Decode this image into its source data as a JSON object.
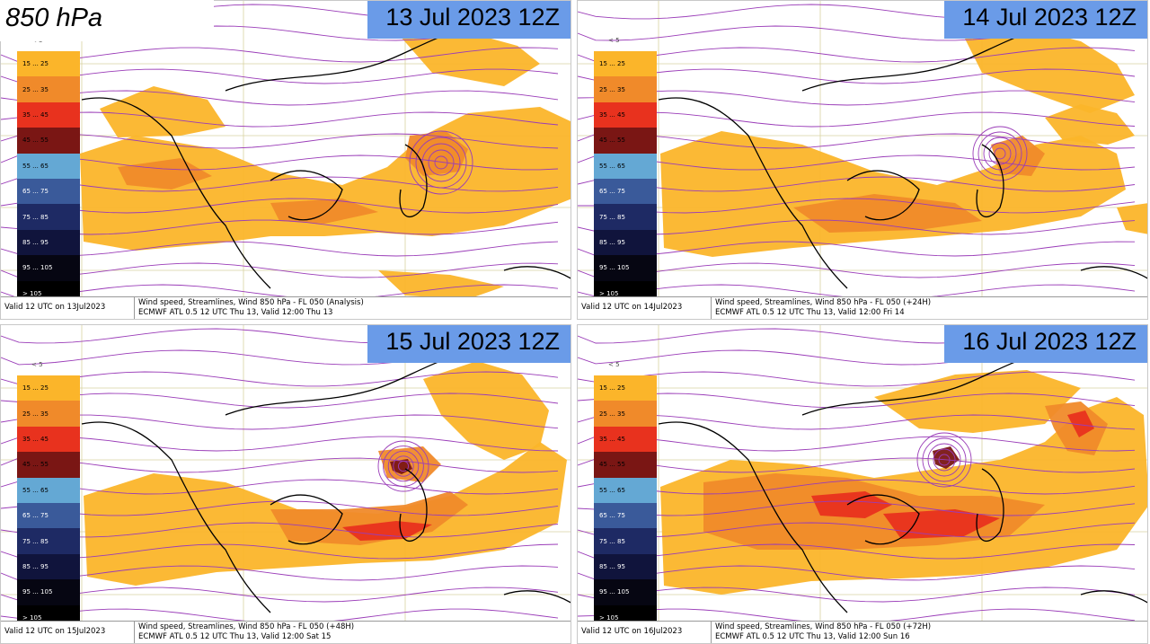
{
  "level_label": "850 hPa",
  "legend": {
    "below_min": "< 5",
    "bins": [
      {
        "label": "15 ... 25",
        "color": "#fbb52a"
      },
      {
        "label": "25 ... 35",
        "color": "#f08a2a"
      },
      {
        "label": "35 ... 45",
        "color": "#e8321e"
      },
      {
        "label": "45 ... 55",
        "color": "#7a1614"
      },
      {
        "label": "55 ... 65",
        "color": "#64a8d4"
      },
      {
        "label": "65 ... 75",
        "color": "#3a5a9a"
      },
      {
        "label": "75 ... 85",
        "color": "#1e2a64"
      },
      {
        "label": "85 ... 95",
        "color": "#10143c"
      },
      {
        "label": "95 ... 105",
        "color": "#060612"
      },
      {
        "label": "> 105",
        "color": "#000000"
      }
    ]
  },
  "panels": [
    {
      "date": "13 Jul 2023 12Z",
      "valid": "Valid 12 UTC on 13Jul2023",
      "line1": "Wind speed, Streamlines, Wind  850 hPa - FL 050 (Analysis)",
      "line2": "ECMWF ATL 0.5 12 UTC Thu 13, Valid 12:00 Thu 13"
    },
    {
      "date": "14 Jul 2023 12Z",
      "valid": "Valid 12 UTC on 14Jul2023",
      "line1": "Wind speed, Streamlines, Wind  850 hPa - FL 050 (+24H)",
      "line2": "ECMWF ATL 0.5 12 UTC Thu 13, Valid 12:00 Fri 14"
    },
    {
      "date": "15 Jul 2023 12Z",
      "valid": "Valid 12 UTC on 15Jul2023",
      "line1": "Wind speed, Streamlines, Wind  850 hPa - FL 050 (+48H)",
      "line2": "ECMWF ATL 0.5 12 UTC Thu 13, Valid 12:00 Sat 15"
    },
    {
      "date": "16 Jul 2023 12Z",
      "valid": "Valid 12 UTC on 16Jul2023",
      "line1": "Wind speed, Streamlines, Wind  850 hPa - FL 050 (+72H)",
      "line2": "ECMWF ATL 0.5 12 UTC Thu 13, Valid 12:00 Sun 16"
    }
  ],
  "colors": {
    "streamline": "#9a3cb8",
    "coast": "#000000",
    "date_box": "#6a9be8"
  }
}
